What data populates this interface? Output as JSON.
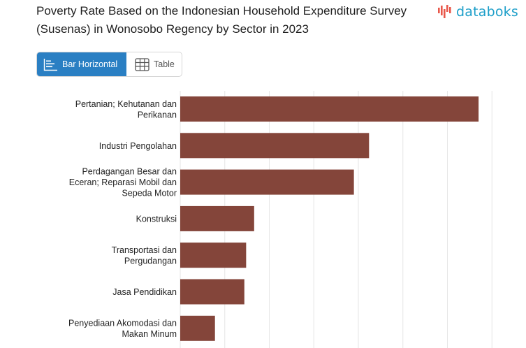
{
  "title": "Poverty Rate Based on the Indonesian Household Expenditure Survey (Susenas) in Wonosobo Regency by Sector in 2023",
  "logo": {
    "text": "databoks",
    "icon": "databoks-bars-icon",
    "color": "#1e9fc9"
  },
  "view_toggle": {
    "options": [
      {
        "label": "Bar Horizontal",
        "icon": "bar-horizontal-icon",
        "active": true
      },
      {
        "label": "Table",
        "icon": "table-grid-icon",
        "active": false
      }
    ],
    "active_color": "#2a7fc3"
  },
  "chart_data": {
    "type": "bar",
    "orientation": "horizontal",
    "categories": [
      [
        "Pertanian; Kehutanan dan",
        "Perikanan"
      ],
      [
        "Industri Pengolahan"
      ],
      [
        "Perdagangan Besar dan",
        "Eceran; Reparasi Mobil dan",
        "Sepeda Motor"
      ],
      [
        "Konstruksi"
      ],
      [
        "Transportasi dan",
        "Pergudangan"
      ],
      [
        "Jasa Pendidikan"
      ],
      [
        "Penyediaan Akomodasi dan",
        "Makan Minum"
      ]
    ],
    "values": [
      33.5,
      21.2,
      19.5,
      8.3,
      7.4,
      7.2,
      3.9
    ],
    "xlim": [
      0,
      40
    ],
    "grid": true,
    "bar_color": "#84453a"
  }
}
